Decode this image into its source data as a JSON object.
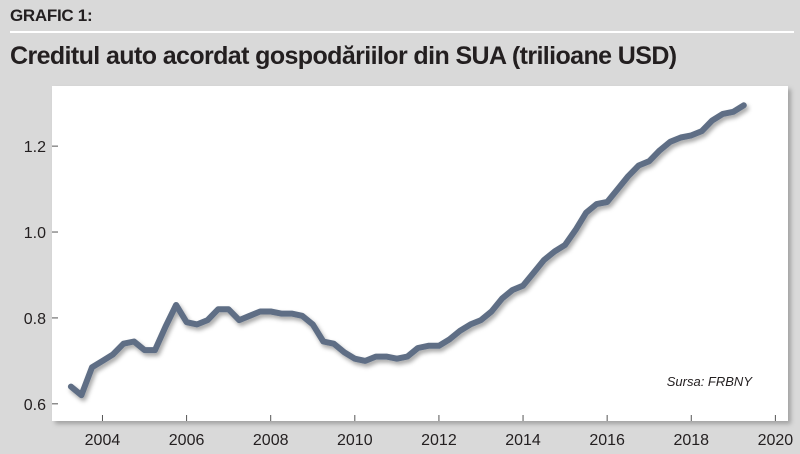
{
  "header": {
    "label": "GRAFIC 1:",
    "title": "Creditul auto acordat gospodăriilor din SUA (trilioane USD)"
  },
  "source": "Sursa: FRBNY",
  "colors": {
    "line": "#5e6e85",
    "background": "#d9d9d9",
    "plot": "#ffffff",
    "text": "#231f20"
  },
  "chart_data": {
    "type": "line",
    "title": "Creditul auto acordat gospodăriilor din SUA (trilioane USD)",
    "xlabel": "",
    "ylabel": "",
    "xlim": [
      2002.8,
      2020.3
    ],
    "ylim": [
      0.56,
      1.34
    ],
    "x_ticks": [
      2004,
      2006,
      2008,
      2010,
      2012,
      2014,
      2016,
      2018,
      2020
    ],
    "y_ticks": [
      0.6,
      0.8,
      1.0,
      1.2
    ],
    "y_tick_labels": [
      "0.6",
      "0.8",
      "1.0",
      "1.2"
    ],
    "grid": false,
    "legend": "none",
    "series": [
      {
        "x": [
          2003.25,
          2003.5,
          2003.75,
          2004.0,
          2004.25,
          2004.5,
          2004.75,
          2005.0,
          2005.25,
          2005.5,
          2005.75,
          2006.0,
          2006.25,
          2006.5,
          2006.75,
          2007.0,
          2007.25,
          2007.5,
          2007.75,
          2008.0,
          2008.25,
          2008.5,
          2008.75,
          2009.0,
          2009.25,
          2009.5,
          2009.75,
          2010.0,
          2010.25,
          2010.5,
          2010.75,
          2011.0,
          2011.25,
          2011.5,
          2011.75,
          2012.0,
          2012.25,
          2012.5,
          2012.75,
          2013.0,
          2013.25,
          2013.5,
          2013.75,
          2014.0,
          2014.25,
          2014.5,
          2014.75,
          2015.0,
          2015.25,
          2015.5,
          2015.75,
          2016.0,
          2016.25,
          2016.5,
          2016.75,
          2017.0,
          2017.25,
          2017.5,
          2017.75,
          2018.0,
          2018.25,
          2018.5,
          2018.75,
          2019.0,
          2019.25
        ],
        "values": [
          0.64,
          0.62,
          0.685,
          0.7,
          0.715,
          0.74,
          0.745,
          0.725,
          0.725,
          0.78,
          0.83,
          0.79,
          0.785,
          0.795,
          0.82,
          0.82,
          0.795,
          0.805,
          0.815,
          0.815,
          0.81,
          0.81,
          0.805,
          0.785,
          0.745,
          0.74,
          0.72,
          0.705,
          0.7,
          0.71,
          0.71,
          0.705,
          0.71,
          0.73,
          0.735,
          0.735,
          0.75,
          0.77,
          0.785,
          0.795,
          0.815,
          0.845,
          0.865,
          0.875,
          0.905,
          0.935,
          0.955,
          0.97,
          1.005,
          1.045,
          1.065,
          1.07,
          1.1,
          1.13,
          1.155,
          1.165,
          1.19,
          1.21,
          1.22,
          1.225,
          1.235,
          1.26,
          1.275,
          1.28,
          1.295
        ]
      }
    ]
  }
}
